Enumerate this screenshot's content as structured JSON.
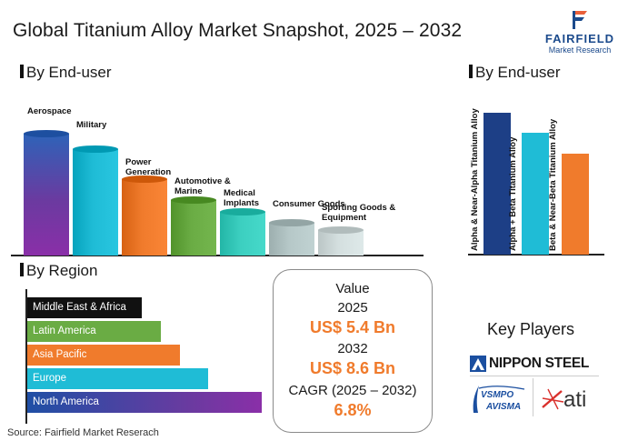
{
  "title": "Global Titanium Alloy Market Snapshot, 2025 – 2032",
  "logo": {
    "name": "FAIRFIELD",
    "sub": "Market Research"
  },
  "sections": {
    "enduser_left": "By End-user",
    "enduser_right": "By End-user",
    "region": "By Region"
  },
  "value_box": {
    "heading": "Value",
    "year1": "2025",
    "value1": "US$ 5.4 Bn",
    "year2": "2032",
    "value2": "US$ 8.6 Bn",
    "cagr_label": "CAGR (2025 – 2032)",
    "cagr_value": "6.8%"
  },
  "key_players": {
    "title": "Key Players",
    "players": [
      {
        "name": "NIPPON STEEL"
      },
      {
        "line1": "VSMPO",
        "line2": "AVISMA"
      },
      {
        "name": "ati"
      }
    ]
  },
  "source": "Source: Fairfield Market Reserach",
  "colors": {
    "purple": "#6b3aa0",
    "cyan": "#1fbcd6",
    "orange": "#f07b2c",
    "green": "#6aac44",
    "teal": "#3ccfc0",
    "lightgray": "#b6c8c8",
    "paler": "#d4dfdf",
    "palest": "#e3e9e9",
    "navy": "#1d3f86",
    "black": "#111111"
  },
  "chart_data": [
    {
      "type": "bar",
      "title": "By End-user",
      "categories": [
        "Aerospace",
        "Military",
        "Power Generation",
        "Automotive & Marine",
        "Medical Implants",
        "Consumer Goods",
        "Sporting Goods & Equipment"
      ],
      "values": [
        100,
        88,
        64,
        47,
        38,
        29,
        23
      ],
      "colors": [
        "#6b3aa0",
        "#1fbcd6",
        "#f07b2c",
        "#6aac44",
        "#3ccfc0",
        "#b6c8c8",
        "#d4dfdf"
      ]
    },
    {
      "type": "bar",
      "title": "By End-user",
      "categories": [
        "Alpha & Near-Alpha Titanium Alloy",
        "Alpha + Beta Titanium Alloy",
        "Beta & Near-Beta Titanium Alloy"
      ],
      "values": [
        100,
        86,
        71
      ],
      "colors": [
        "#1d3f86",
        "#1fbcd6",
        "#f07b2c"
      ]
    },
    {
      "type": "bar",
      "orientation": "horizontal",
      "title": "By Region",
      "categories": [
        "Middle East & Africa",
        "Latin America",
        "Asia Pacific",
        "Europe",
        "North America"
      ],
      "values": [
        49,
        57,
        65,
        77,
        100
      ],
      "colors": [
        "#111111",
        "#6aac44",
        "#f07b2c",
        "#1fbcd6",
        "#6b3aa0"
      ]
    }
  ]
}
